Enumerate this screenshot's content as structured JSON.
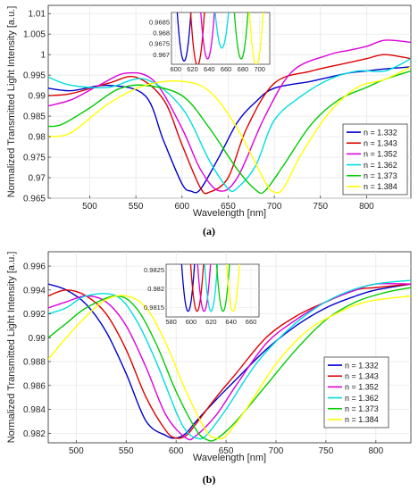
{
  "chart_data": [
    {
      "type": "line",
      "panel": "(a)",
      "caption": "(a)",
      "xlabel": "Wavelength [nm]",
      "ylabel": "Normalized Transmitted Light Intensity [a.u.]",
      "xlim": [
        455,
        848
      ],
      "ylim": [
        0.965,
        1.012
      ],
      "xticks": [
        500,
        550,
        600,
        650,
        700,
        750,
        800
      ],
      "yticks": [
        "0.965",
        "0.97",
        "0.975",
        "0.98",
        "0.985",
        "0.99",
        "0.995",
        "1",
        "1.005",
        "1.01"
      ],
      "grid": true,
      "legend_position": "lower-right",
      "series": [
        {
          "name": "n = 1.332",
          "color": "#0000cc",
          "x": [
            455,
            480,
            520,
            560,
            580,
            600,
            610,
            620,
            640,
            660,
            680,
            700,
            740,
            780,
            800,
            820,
            848
          ],
          "y": [
            0.9918,
            0.9912,
            0.9925,
            0.99,
            0.979,
            0.9685,
            0.9667,
            0.9672,
            0.975,
            0.9835,
            0.9885,
            0.9918,
            0.9935,
            0.9955,
            0.996,
            0.9965,
            0.997
          ]
        },
        {
          "name": "n = 1.343",
          "color": "#dd0000",
          "x": [
            455,
            480,
            520,
            550,
            580,
            600,
            620,
            630,
            650,
            670,
            700,
            740,
            780,
            800,
            820,
            848
          ],
          "y": [
            0.99,
            0.9905,
            0.993,
            0.9945,
            0.989,
            0.978,
            0.9675,
            0.9665,
            0.97,
            0.982,
            0.993,
            0.996,
            0.998,
            0.999,
            1.0,
            0.999
          ]
        },
        {
          "name": "n = 1.352",
          "color": "#dd00dd",
          "x": [
            455,
            480,
            510,
            540,
            570,
            600,
            620,
            640,
            660,
            690,
            720,
            760,
            780,
            800,
            820,
            848
          ],
          "y": [
            0.9875,
            0.989,
            0.9925,
            0.9955,
            0.9935,
            0.982,
            0.972,
            0.9668,
            0.97,
            0.985,
            0.996,
            1.0,
            1.001,
            1.002,
            1.0035,
            1.003
          ]
        },
        {
          "name": "n = 1.362",
          "color": "#00dddd",
          "x": [
            455,
            480,
            520,
            560,
            600,
            630,
            650,
            660,
            680,
            700,
            730,
            760,
            790,
            820,
            848
          ],
          "y": [
            0.9945,
            0.9925,
            0.992,
            0.994,
            0.987,
            0.974,
            0.9673,
            0.9675,
            0.973,
            0.984,
            0.99,
            0.994,
            0.996,
            0.996,
            0.999
          ]
        },
        {
          "name": "n = 1.373",
          "color": "#00cc00",
          "x": [
            455,
            470,
            500,
            530,
            560,
            600,
            630,
            660,
            680,
            690,
            710,
            740,
            770,
            800,
            820,
            848
          ],
          "y": [
            0.9825,
            0.983,
            0.987,
            0.9915,
            0.9925,
            0.99,
            0.982,
            0.972,
            0.967,
            0.9668,
            0.973,
            0.983,
            0.989,
            0.992,
            0.994,
            0.996
          ]
        },
        {
          "name": "n = 1.384",
          "color": "#ffff00",
          "x": [
            455,
            480,
            520,
            560,
            600,
            630,
            660,
            690,
            700,
            710,
            730,
            760,
            790,
            820,
            848
          ],
          "y": [
            0.98,
            0.981,
            0.988,
            0.9925,
            0.9935,
            0.991,
            0.982,
            0.969,
            0.9665,
            0.9675,
            0.976,
            0.986,
            0.992,
            0.994,
            0.997
          ]
        }
      ],
      "inset": {
        "xlim": [
          595,
          712
        ],
        "ylim": [
          0.96655,
          0.96895
        ],
        "xticks": [
          600,
          620,
          640,
          660,
          680,
          700
        ],
        "yticks": [
          "0.967",
          "0.9675",
          "0.968",
          "0.9685"
        ],
        "minima": [
          {
            "name": "n = 1.332",
            "x0": 610,
            "y0": 0.9667
          },
          {
            "name": "n = 1.343",
            "x0": 626,
            "y0": 0.9665
          },
          {
            "name": "n = 1.352",
            "x0": 638,
            "y0": 0.9668
          },
          {
            "name": "n = 1.362",
            "x0": 655,
            "y0": 0.9673
          },
          {
            "name": "n = 1.373",
            "x0": 678,
            "y0": 0.9668
          },
          {
            "name": "n = 1.384",
            "x0": 696,
            "y0": 0.9665
          }
        ]
      }
    },
    {
      "type": "line",
      "panel": "(b)",
      "caption": "(b)",
      "xlabel": "Wavelength [nm]",
      "ylabel": "Normalized Transmitted Light Intensity [a.u.]",
      "xlim": [
        472,
        835
      ],
      "ylim": [
        0.9812,
        0.9972
      ],
      "xticks": [
        500,
        550,
        600,
        650,
        700,
        750,
        800
      ],
      "yticks": [
        "0.982",
        "0.984",
        "0.986",
        "0.988",
        "0.99",
        "0.992",
        "0.994",
        "0.996"
      ],
      "grid": true,
      "legend_position": "right",
      "series": [
        {
          "name": "n = 1.332",
          "color": "#0000cc",
          "x": [
            472,
            490,
            510,
            530,
            550,
            570,
            590,
            600,
            610,
            620,
            640,
            660,
            690,
            720,
            750,
            780,
            800,
            835
          ],
          "y": [
            0.9945,
            0.994,
            0.9928,
            0.9905,
            0.987,
            0.983,
            0.9818,
            0.9816,
            0.982,
            0.983,
            0.9848,
            0.9865,
            0.989,
            0.991,
            0.9925,
            0.9935,
            0.994,
            0.9945
          ]
        },
        {
          "name": "n = 1.343",
          "color": "#dd0000",
          "x": [
            472,
            490,
            510,
            530,
            550,
            570,
            590,
            600,
            610,
            620,
            640,
            660,
            690,
            720,
            750,
            780,
            800,
            835
          ],
          "y": [
            0.9935,
            0.994,
            0.9935,
            0.992,
            0.989,
            0.985,
            0.9822,
            0.9816,
            0.9818,
            0.9828,
            0.985,
            0.987,
            0.99,
            0.9918,
            0.993,
            0.994,
            0.9942,
            0.9945
          ]
        },
        {
          "name": "n = 1.352",
          "color": "#dd00dd",
          "x": [
            472,
            490,
            510,
            530,
            550,
            570,
            590,
            610,
            620,
            640,
            660,
            690,
            720,
            750,
            780,
            800,
            835
          ],
          "y": [
            0.9925,
            0.993,
            0.9935,
            0.993,
            0.991,
            0.9875,
            0.9835,
            0.9816,
            0.9818,
            0.9835,
            0.986,
            0.9895,
            0.9915,
            0.993,
            0.994,
            0.9945,
            0.9945
          ]
        },
        {
          "name": "n = 1.362",
          "color": "#00dddd",
          "x": [
            472,
            490,
            510,
            540,
            560,
            580,
            600,
            610,
            620,
            630,
            650,
            680,
            710,
            740,
            770,
            800,
            835
          ],
          "y": [
            0.992,
            0.9925,
            0.9935,
            0.9935,
            0.9915,
            0.988,
            0.9838,
            0.9822,
            0.9816,
            0.9818,
            0.984,
            0.9878,
            0.9905,
            0.9925,
            0.9938,
            0.9945,
            0.9948
          ]
        },
        {
          "name": "n = 1.373",
          "color": "#00cc00",
          "x": [
            472,
            490,
            510,
            540,
            560,
            580,
            600,
            620,
            630,
            640,
            660,
            690,
            720,
            750,
            780,
            810,
            835
          ],
          "y": [
            0.99,
            0.9912,
            0.9925,
            0.9935,
            0.9925,
            0.9895,
            0.9855,
            0.9823,
            0.9815,
            0.9815,
            0.983,
            0.986,
            0.989,
            0.9915,
            0.993,
            0.9938,
            0.9942
          ]
        },
        {
          "name": "n = 1.384",
          "color": "#ffff00",
          "x": [
            472,
            490,
            510,
            530,
            550,
            570,
            590,
            610,
            630,
            640,
            650,
            670,
            700,
            730,
            760,
            790,
            835
          ],
          "y": [
            0.9882,
            0.99,
            0.9918,
            0.9932,
            0.9935,
            0.9925,
            0.9895,
            0.9855,
            0.9822,
            0.9816,
            0.9818,
            0.984,
            0.9878,
            0.9905,
            0.992,
            0.993,
            0.9935
          ]
        }
      ],
      "inset": {
        "xlim": [
          575,
          668
        ],
        "ylim": [
          0.98125,
          0.98265
        ],
        "xticks": [
          580,
          600,
          620,
          640,
          660
        ],
        "yticks": [
          "0.9815",
          "0.982",
          "0.9825"
        ],
        "minima": [
          {
            "name": "n = 1.332",
            "x0": 597,
            "y0": 0.9814
          },
          {
            "name": "n = 1.343",
            "x0": 606,
            "y0": 0.9814
          },
          {
            "name": "n = 1.352",
            "x0": 613,
            "y0": 0.9814
          },
          {
            "name": "n = 1.362",
            "x0": 620,
            "y0": 0.9814
          },
          {
            "name": "n = 1.373",
            "x0": 632,
            "y0": 0.9814
          },
          {
            "name": "n = 1.384",
            "x0": 642,
            "y0": 0.9814
          }
        ]
      }
    }
  ]
}
